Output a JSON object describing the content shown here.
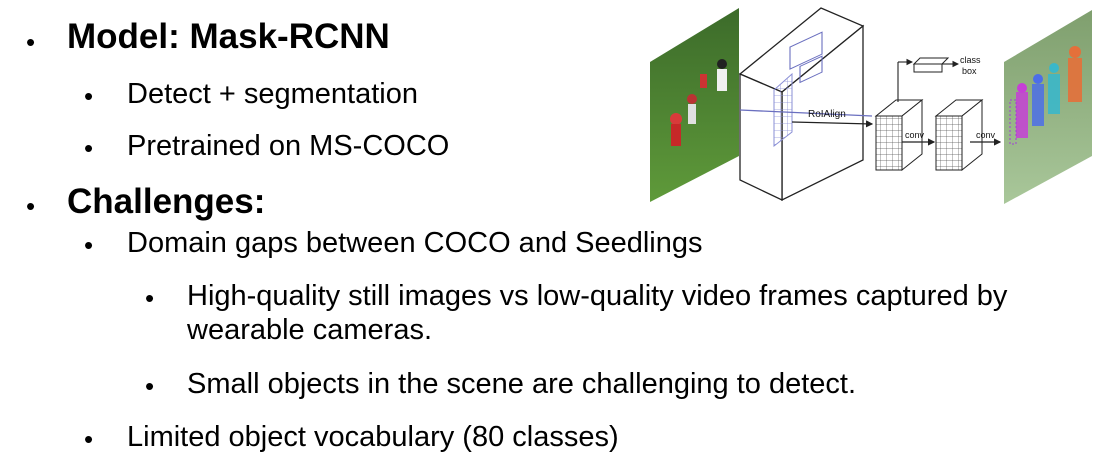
{
  "slide": {
    "bullets": [
      {
        "level": 1,
        "text": "Model: Mask-RCNN"
      },
      {
        "level": 2,
        "text": "Detect + segmentation"
      },
      {
        "level": 2,
        "text": "Pretrained on MS-COCO"
      },
      {
        "level": 1,
        "text": "Challenges:"
      },
      {
        "level": 2,
        "text": "Domain gaps between COCO and Seedlings"
      },
      {
        "level": 3,
        "text": "High-quality still images vs low-quality video frames captured by"
      },
      {
        "level": 3,
        "text": "wearable cameras."
      },
      {
        "level": 3,
        "text": "Small objects in the scene are challenging to detect."
      },
      {
        "level": 2,
        "text": "Limited object vocabulary (80 classes)"
      }
    ],
    "bullet_glyph": "•"
  },
  "diagram": {
    "labels": {
      "roialign": "RoIAlign",
      "class": "class",
      "box": "box",
      "conv1": "conv",
      "conv2": "conv"
    }
  }
}
